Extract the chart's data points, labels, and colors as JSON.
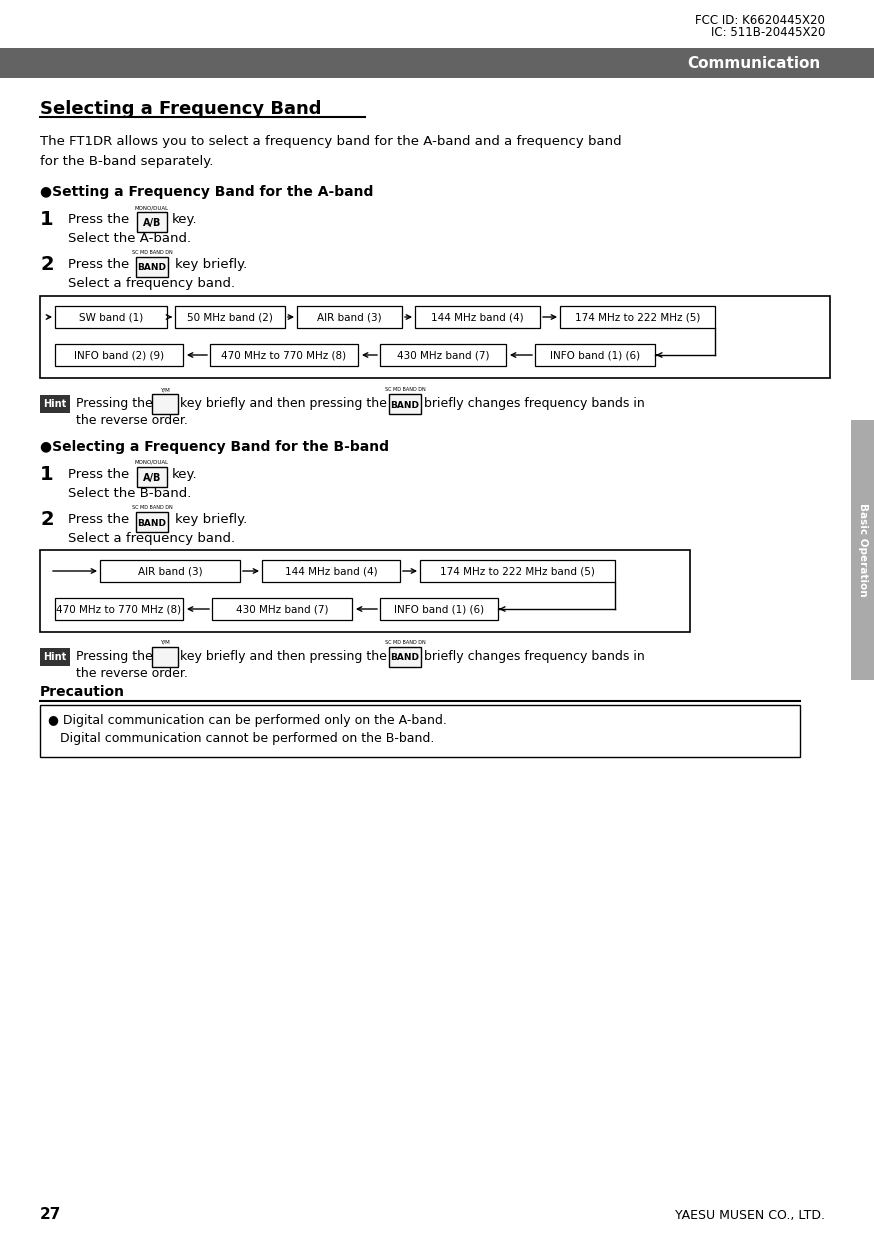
{
  "fcc_line1": "FCC ID: K6620445X20",
  "fcc_line2": "IC: 511B-20445X20",
  "header_text": "Communication",
  "header_bg": "#636363",
  "header_text_color": "#ffffff",
  "title": "Selecting a Frequency Band",
  "intro_line1": "The FT1DR allows you to select a frequency band for the A-band and a frequency band",
  "intro_line2": "for the B-band separately.",
  "section_a_title": "●Setting a Frequency Band for the A-band",
  "section_b_title": "●Selecting a Frequency Band for the B-band",
  "bands_a_row1": [
    "SW band (1)",
    "50 MHz band (2)",
    "AIR band (3)",
    "144 MHz band (4)",
    "174 MHz to 222 MHz (5)"
  ],
  "bands_a_row2": [
    "INFO band (2) (9)",
    "470 MHz to 770 MHz (8)",
    "430 MHz band (7)",
    "INFO band (1) (6)"
  ],
  "bands_b_row1": [
    "AIR band (3)",
    "144 MHz band (4)",
    "174 MHz to 222 MHz band (5)"
  ],
  "bands_b_row2": [
    "470 MHz to 770 MHz (8)",
    "430 MHz band (7)",
    "INFO band (1) (6)"
  ],
  "precaution_title": "Precaution",
  "precaution_line1": "● Digital communication can be performed only on the A-band.",
  "precaution_line2": "   Digital communication cannot be performed on the B-band.",
  "sidebar_text": "Basic Operation",
  "sidebar_bg": "#aaaaaa",
  "page_number": "27",
  "footer_text": "YAESU MUSEN CO., LTD.",
  "bg_color": "#ffffff",
  "hint_bg": "#333333"
}
